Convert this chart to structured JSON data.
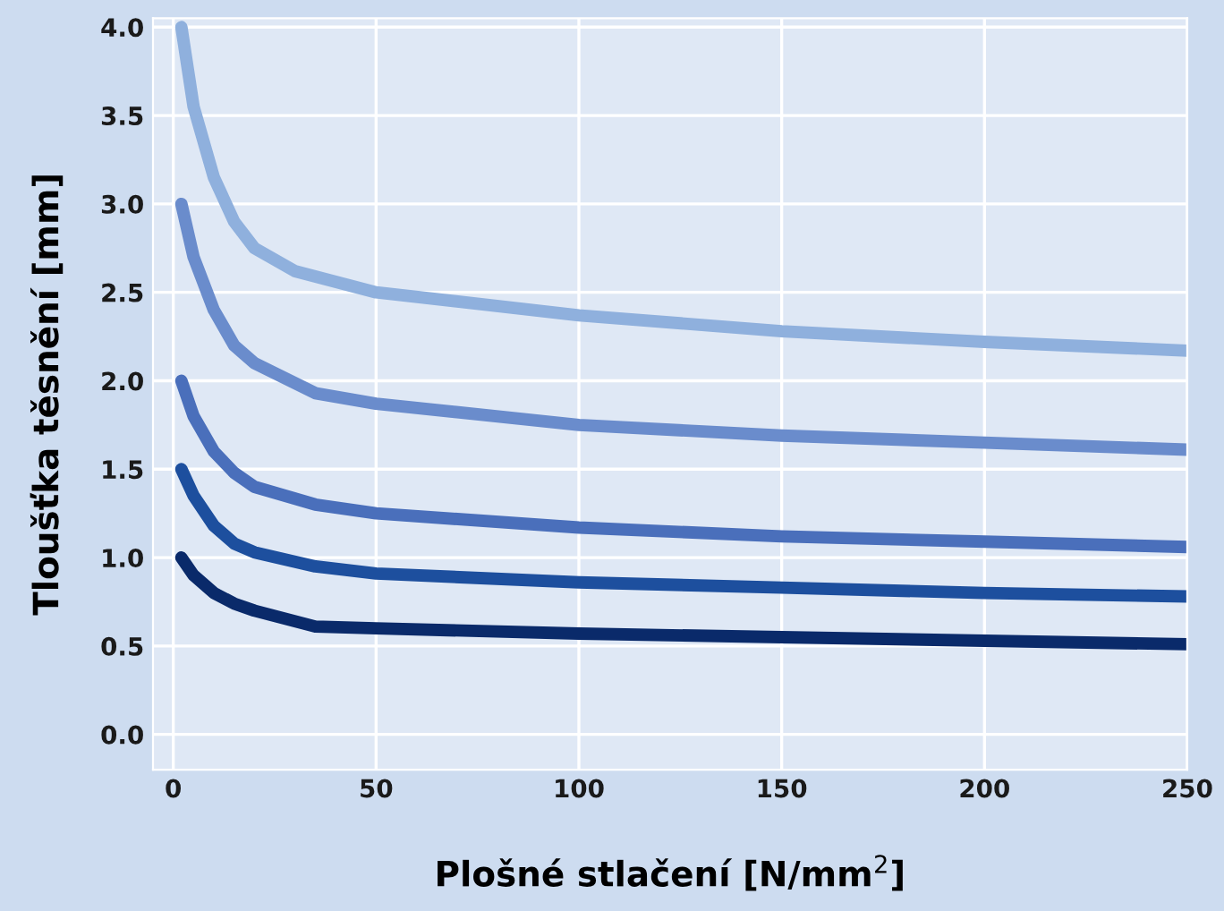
{
  "chart_data": {
    "type": "line",
    "xlabel": "Plošné stlačení [N/mm$^{2}$]",
    "ylabel": "Tloušťka těsnění [mm]",
    "xlim": [
      -5,
      250
    ],
    "ylim": [
      -0.2,
      4.05
    ],
    "xticks": [
      0,
      50,
      100,
      150,
      200,
      250
    ],
    "yticks": [
      {
        "value": 0,
        "label": "0.0"
      },
      0.5,
      {
        "value": 1,
        "label": "1.0"
      },
      1.5,
      {
        "value": 2,
        "label": "2.0"
      },
      2.5,
      {
        "value": 3,
        "label": "3.0"
      },
      3.5,
      {
        "value": 4,
        "label": "4.0"
      }
    ],
    "grid": true,
    "marker": "none",
    "line_style": "solid",
    "series": [
      {
        "color": "#8fb0dd",
        "x": [
          2,
          5,
          10,
          15,
          20,
          30,
          50,
          100,
          150,
          200,
          250
        ],
        "values": [
          4.0,
          3.55,
          3.15,
          2.9,
          2.75,
          2.62,
          2.5,
          2.37,
          2.28,
          2.22,
          2.17
        ]
      },
      {
        "color": "#6a8ccc",
        "x": [
          2,
          5,
          10,
          15,
          20,
          35,
          50,
          100,
          150,
          200,
          250
        ],
        "values": [
          3.0,
          2.7,
          2.4,
          2.2,
          2.1,
          1.93,
          1.87,
          1.75,
          1.69,
          1.65,
          1.61
        ]
      },
      {
        "color": "#4a6fbb",
        "x": [
          2,
          5,
          10,
          15,
          20,
          35,
          50,
          100,
          150,
          200,
          250
        ],
        "values": [
          2.0,
          1.8,
          1.6,
          1.48,
          1.4,
          1.3,
          1.25,
          1.17,
          1.12,
          1.09,
          1.06
        ]
      },
      {
        "color": "#1d4f9e",
        "x": [
          2,
          5,
          10,
          15,
          20,
          35,
          50,
          100,
          150,
          200,
          250
        ],
        "values": [
          1.5,
          1.35,
          1.18,
          1.08,
          1.03,
          0.95,
          0.91,
          0.86,
          0.83,
          0.8,
          0.78
        ]
      },
      {
        "color": "#0a2a6a",
        "x": [
          2,
          5,
          10,
          15,
          20,
          35,
          50,
          100,
          150,
          200,
          250
        ],
        "values": [
          1.0,
          0.9,
          0.8,
          0.74,
          0.7,
          0.61,
          0.6,
          0.57,
          0.55,
          0.53,
          0.51
        ]
      }
    ]
  }
}
